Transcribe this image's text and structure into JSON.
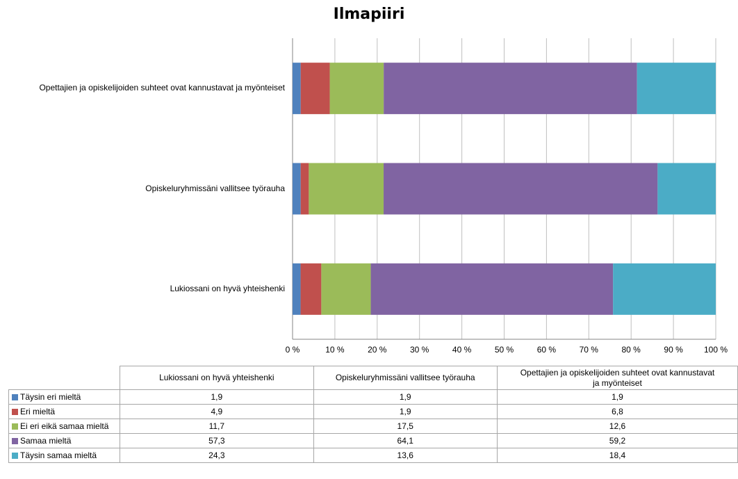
{
  "chart_data": {
    "type": "bar",
    "orientation": "horizontal",
    "stacked": "percent",
    "title": "Ilmapiiri",
    "xlabel": "",
    "ylabel": "",
    "xlim": [
      0,
      100
    ],
    "grid": true,
    "legend": "data-table-bottom",
    "categories": [
      "Lukiossani on hyvä yhteishenki",
      "Opiskeluryhmissäni vallitsee työrauha",
      "Opettajien ja opiskelijoiden suhteet ovat kannustavat ja myönteiset"
    ],
    "x_ticks": [
      "0 %",
      "10 %",
      "20 %",
      "30 %",
      "40 %",
      "50 %",
      "60 %",
      "70 %",
      "80 %",
      "90 %",
      "100 %"
    ],
    "series": [
      {
        "name": "Täysin eri mieltä",
        "color": "#4f81bd",
        "values": [
          1.9,
          1.9,
          1.9
        ],
        "labels": [
          "1,9",
          "1,9",
          "1,9"
        ]
      },
      {
        "name": "Eri mieltä",
        "color": "#c0504d",
        "values": [
          4.9,
          1.9,
          6.8
        ],
        "labels": [
          "4,9",
          "1,9",
          "6,8"
        ]
      },
      {
        "name": "Ei eri eikä samaa mieltä",
        "color": "#9bbb59",
        "values": [
          11.7,
          17.5,
          12.6
        ],
        "labels": [
          "11,7",
          "17,5",
          "12,6"
        ]
      },
      {
        "name": "Samaa mieltä",
        "color": "#8064a2",
        "values": [
          57.3,
          64.1,
          59.2
        ],
        "labels": [
          "57,3",
          "64,1",
          "59,2"
        ]
      },
      {
        "name": "Täysin samaa mieltä",
        "color": "#4bacc6",
        "values": [
          24.3,
          13.6,
          18.4
        ],
        "labels": [
          "24,3",
          "13,6",
          "18,4"
        ]
      }
    ],
    "table_headers": [
      "Lukiossani on hyvä yhteishenki",
      "Opiskeluryhmissäni vallitsee työrauha",
      "Opettajien ja opiskelijoiden suhteet ovat kannustavat ja myönteiset"
    ]
  }
}
